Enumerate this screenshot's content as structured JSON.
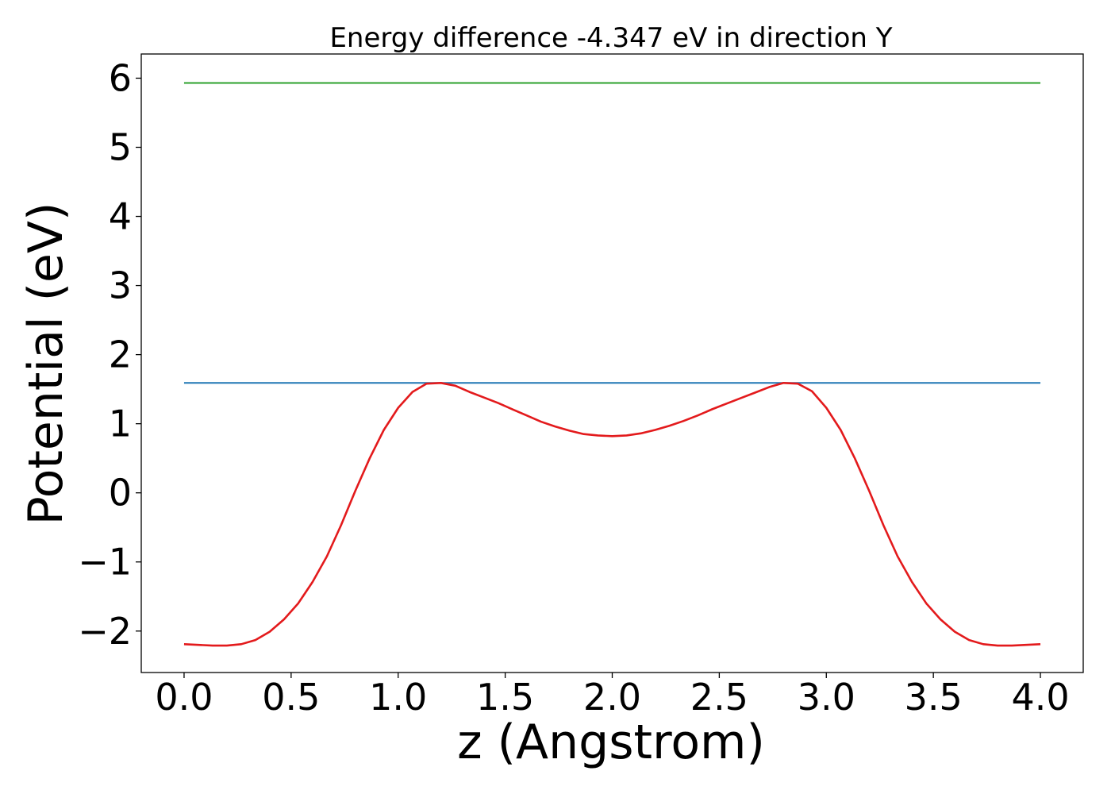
{
  "chart_data": {
    "type": "line",
    "title": "Energy difference -4.347 eV in direction Y",
    "xlabel": "z (Angstrom)",
    "ylabel": "Potential (eV)",
    "xlim": [
      -0.2,
      4.2
    ],
    "ylim": [
      -2.6,
      6.35
    ],
    "x_ticks": [
      0.0,
      0.5,
      1.0,
      1.5,
      2.0,
      2.5,
      3.0,
      3.5,
      4.0
    ],
    "x_tick_labels": [
      "0.0",
      "0.5",
      "1.0",
      "1.5",
      "2.0",
      "2.5",
      "3.0",
      "3.5",
      "4.0"
    ],
    "y_ticks": [
      -2,
      -1,
      0,
      1,
      2,
      3,
      4,
      5,
      6
    ],
    "y_tick_labels": [
      "−2",
      "−1",
      "0",
      "1",
      "2",
      "3",
      "4",
      "5",
      "6"
    ],
    "grid": false,
    "legend": "none",
    "series": [
      {
        "color": "#2ca02c",
        "x": [
          0.0,
          4.0
        ],
        "y": [
          5.93,
          5.93
        ]
      },
      {
        "color": "#1f77b4",
        "x": [
          0.0,
          4.0
        ],
        "y": [
          1.59,
          1.59
        ]
      },
      {
        "color": "#e31a1c",
        "x": [
          0.0,
          0.067,
          0.133,
          0.2,
          0.267,
          0.333,
          0.4,
          0.467,
          0.533,
          0.6,
          0.667,
          0.733,
          0.8,
          0.867,
          0.933,
          1.0,
          1.067,
          1.133,
          1.2,
          1.267,
          1.333,
          1.4,
          1.467,
          1.533,
          1.6,
          1.667,
          1.733,
          1.8,
          1.867,
          1.933,
          2.0,
          2.067,
          2.133,
          2.2,
          2.267,
          2.333,
          2.4,
          2.467,
          2.533,
          2.6,
          2.667,
          2.733,
          2.8,
          2.867,
          2.933,
          3.0,
          3.067,
          3.133,
          3.2,
          3.267,
          3.333,
          3.4,
          3.467,
          3.533,
          3.6,
          3.667,
          3.733,
          3.8,
          3.867,
          3.933,
          4.0
        ],
        "y": [
          -2.19,
          -2.2,
          -2.21,
          -2.21,
          -2.19,
          -2.13,
          -2.01,
          -1.83,
          -1.6,
          -1.29,
          -0.92,
          -0.47,
          0.03,
          0.5,
          0.91,
          1.23,
          1.46,
          1.58,
          1.59,
          1.55,
          1.46,
          1.38,
          1.3,
          1.21,
          1.12,
          1.03,
          0.96,
          0.9,
          0.85,
          0.83,
          0.82,
          0.83,
          0.86,
          0.91,
          0.97,
          1.04,
          1.12,
          1.21,
          1.29,
          1.37,
          1.45,
          1.53,
          1.59,
          1.58,
          1.47,
          1.23,
          0.91,
          0.5,
          0.03,
          -0.47,
          -0.92,
          -1.29,
          -1.6,
          -1.83,
          -2.01,
          -2.13,
          -2.19,
          -2.21,
          -2.21,
          -2.2,
          -2.19
        ]
      }
    ]
  }
}
